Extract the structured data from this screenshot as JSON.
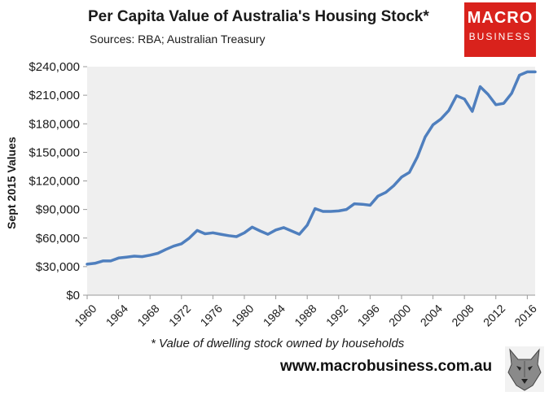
{
  "title": "Per Capita Value of Australia's Housing Stock*",
  "subtitle": "Sources: RBA; Australian Treasury",
  "logo": {
    "line1": "MACRO",
    "line2": "BUSINESS",
    "color": "#d9221c"
  },
  "footnote": "* Value of dwelling stock owned by households",
  "website": "www.macrobusiness.com.au",
  "colors": {
    "plot_bg": "#efefef",
    "line": "#4f7fbe"
  },
  "chart_data": {
    "type": "line",
    "title": "Per Capita Value of Australia's Housing Stock*",
    "xlabel": "",
    "ylabel": "Sept 2015 Values",
    "xlim": [
      1960,
      2017
    ],
    "ylim": [
      0,
      240000
    ],
    "y_ticks": [
      0,
      30000,
      60000,
      90000,
      120000,
      150000,
      180000,
      210000,
      240000
    ],
    "y_tick_labels": [
      "$0",
      "$30,000",
      "$60,000",
      "$90,000",
      "$120,000",
      "$150,000",
      "$180,000",
      "$210,000",
      "$240,000"
    ],
    "x_ticks": [
      1960,
      1964,
      1968,
      1972,
      1976,
      1980,
      1984,
      1988,
      1992,
      1996,
      2000,
      2004,
      2008,
      2012,
      2016
    ],
    "x_tick_labels": [
      "1960",
      "1964",
      "1968",
      "1972",
      "1976",
      "1980",
      "1984",
      "1988",
      "1992",
      "1996",
      "2000",
      "2004",
      "2008",
      "2012",
      "2016"
    ],
    "grid": false,
    "legend": "none",
    "series": [
      {
        "name": "Per capita value of housing stock",
        "x": [
          1960,
          1961,
          1962,
          1963,
          1964,
          1965,
          1966,
          1967,
          1968,
          1969,
          1970,
          1971,
          1972,
          1973,
          1974,
          1975,
          1976,
          1977,
          1978,
          1979,
          1980,
          1981,
          1982,
          1983,
          1984,
          1985,
          1986,
          1987,
          1988,
          1989,
          1990,
          1991,
          1992,
          1993,
          1994,
          1995,
          1996,
          1997,
          1998,
          1999,
          2000,
          2001,
          2002,
          2003,
          2004,
          2005,
          2006,
          2007,
          2008,
          2009,
          2010,
          2011,
          2012,
          2013,
          2014,
          2015,
          2016,
          2017
        ],
        "values": [
          32500,
          33500,
          36000,
          36000,
          39000,
          40000,
          41000,
          40500,
          42000,
          44000,
          48000,
          51500,
          54000,
          60000,
          68000,
          64500,
          65500,
          64000,
          62500,
          61500,
          65500,
          71500,
          67500,
          64000,
          68500,
          71000,
          67500,
          64000,
          73500,
          91000,
          88000,
          88000,
          88500,
          90000,
          96000,
          95500,
          94500,
          104000,
          108000,
          115000,
          124000,
          129000,
          145000,
          166000,
          179000,
          185000,
          194000,
          209500,
          206000,
          193000,
          219000,
          211000,
          200000,
          201500,
          212000,
          231000,
          234500,
          234500
        ]
      }
    ]
  }
}
